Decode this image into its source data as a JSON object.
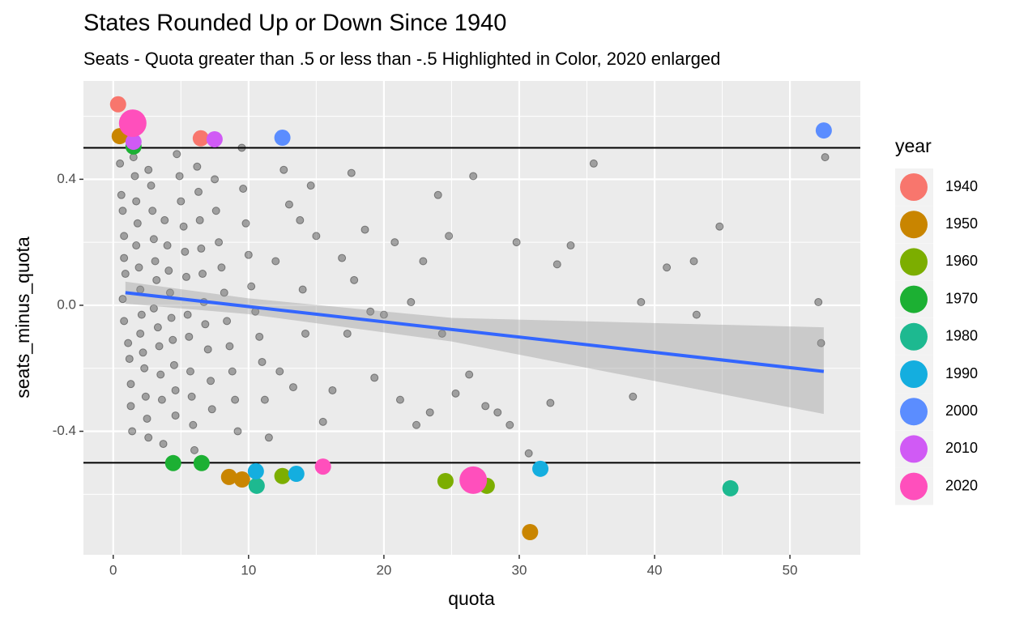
{
  "chart_data": {
    "type": "scatter",
    "title": "States Rounded Up or Down Since 1940",
    "subtitle": "Seats - Quota greater than .5 or less than -.5 Highlighted in Color, 2020 enlarged",
    "x_label": "quota",
    "y_label": "seats_minus_quota",
    "legend_title": "year",
    "legend_position": "right",
    "grid": true,
    "xlim": [
      -2.2,
      55.2
    ],
    "ylim": [
      -0.792,
      0.712
    ],
    "xticks": [
      0,
      10,
      20,
      30,
      40,
      50
    ],
    "yticks": [
      -0.4,
      {
        "value": 0,
        "label": "0.0"
      },
      0.4
    ],
    "hlines": [
      0.5,
      -0.5
    ],
    "points": {
      "color": "#000000",
      "x": [
        0.5,
        0.6,
        0.7,
        0.8,
        0.8,
        0.9,
        0.7,
        0.8,
        1.1,
        1.2,
        1.3,
        1.3,
        1.4,
        1.5,
        1.6,
        1.7,
        1.8,
        1.7,
        1.9,
        2.0,
        2.1,
        2.0,
        2.2,
        2.3,
        2.4,
        2.5,
        2.6,
        2.6,
        2.8,
        2.9,
        3.0,
        3.1,
        3.2,
        3.0,
        3.3,
        3.4,
        3.5,
        3.6,
        3.7,
        3.8,
        4.0,
        4.1,
        4.2,
        4.3,
        4.4,
        4.5,
        4.6,
        4.6,
        4.7,
        4.9,
        5.0,
        5.2,
        5.3,
        5.4,
        5.5,
        5.6,
        5.7,
        5.8,
        5.9,
        6.0,
        6.2,
        6.3,
        6.4,
        6.5,
        6.6,
        6.7,
        6.8,
        7.0,
        7.2,
        7.3,
        7.5,
        7.6,
        7.8,
        8.0,
        8.2,
        8.4,
        8.6,
        8.8,
        9.0,
        9.2,
        9.5,
        9.6,
        9.8,
        10.0,
        10.2,
        10.5,
        10.8,
        11.0,
        11.2,
        11.5,
        12.0,
        12.3,
        12.6,
        13.0,
        13.3,
        13.8,
        14.0,
        14.2,
        14.6,
        15.0,
        15.5,
        16.2,
        16.9,
        17.3,
        17.6,
        17.8,
        18.6,
        19.0,
        19.3,
        20.0,
        20.8,
        21.2,
        22.0,
        22.4,
        22.9,
        23.4,
        24.0,
        24.3,
        24.8,
        25.3,
        26.3,
        26.6,
        27.5,
        28.4,
        29.3,
        29.8,
        30.7,
        32.3,
        32.8,
        33.8,
        35.5,
        38.4,
        39.0,
        40.9,
        42.9,
        43.1,
        44.8,
        52.1,
        52.3,
        52.6
      ],
      "y": [
        0.45,
        0.35,
        0.3,
        0.22,
        0.15,
        0.1,
        0.02,
        -0.05,
        -0.12,
        -0.17,
        -0.25,
        -0.32,
        -0.4,
        0.47,
        0.41,
        0.33,
        0.26,
        0.19,
        0.12,
        0.05,
        -0.03,
        -0.09,
        -0.15,
        -0.2,
        -0.29,
        -0.36,
        -0.42,
        0.43,
        0.38,
        0.3,
        0.21,
        0.14,
        0.08,
        -0.01,
        -0.07,
        -0.13,
        -0.22,
        -0.3,
        -0.44,
        0.27,
        0.19,
        0.11,
        0.04,
        -0.04,
        -0.11,
        -0.19,
        -0.27,
        -0.35,
        0.48,
        0.41,
        0.33,
        0.25,
        0.17,
        0.09,
        -0.03,
        -0.1,
        -0.21,
        -0.29,
        -0.38,
        -0.46,
        0.44,
        0.36,
        0.27,
        0.18,
        0.1,
        0.01,
        -0.06,
        -0.14,
        -0.24,
        -0.33,
        0.4,
        0.3,
        0.2,
        0.12,
        0.04,
        -0.05,
        -0.13,
        -0.21,
        -0.3,
        -0.4,
        0.5,
        0.37,
        0.26,
        0.16,
        0.06,
        -0.02,
        -0.1,
        -0.18,
        -0.3,
        -0.42,
        0.14,
        -0.21,
        0.43,
        0.32,
        -0.26,
        0.27,
        0.05,
        -0.09,
        0.38,
        0.22,
        -0.37,
        -0.27,
        0.15,
        -0.09,
        0.42,
        0.08,
        0.24,
        -0.02,
        -0.23,
        -0.03,
        0.2,
        -0.3,
        0.01,
        -0.38,
        0.14,
        -0.34,
        0.35,
        -0.09,
        0.22,
        -0.28,
        -0.22,
        0.41,
        -0.32,
        -0.34,
        -0.38,
        0.2,
        -0.47,
        -0.31,
        0.13,
        0.19,
        0.45,
        -0.29,
        0.01,
        0.12,
        0.14,
        -0.03,
        0.25,
        0.01,
        -0.12,
        0.47
      ]
    },
    "trend": {
      "color": "#3366ff",
      "x": [
        0.9,
        52.5
      ],
      "y": [
        0.04,
        -0.21
      ]
    },
    "band": {
      "x": [
        0.9,
        10,
        25,
        52.5
      ],
      "upper": [
        0.075,
        0.022,
        -0.04,
        -0.07
      ],
      "lower": [
        0.005,
        -0.028,
        -0.115,
        -0.345
      ]
    },
    "series": [
      {
        "name": "1940",
        "color": "#F8766D",
        "x": [
          0.36,
          6.47
        ],
        "y": [
          0.638,
          0.53
        ]
      },
      {
        "name": "1950",
        "color": "#C98500",
        "x": [
          0.48,
          8.56,
          9.52,
          30.8
        ],
        "y": [
          0.537,
          -0.545,
          -0.553,
          -0.72
        ]
      },
      {
        "name": "1960",
        "color": "#7CAE00",
        "x": [
          12.5,
          24.55,
          27.6
        ],
        "y": [
          -0.542,
          -0.558,
          -0.573
        ]
      },
      {
        "name": "1970",
        "color": "#1CB033",
        "x": [
          1.5,
          4.43,
          6.53
        ],
        "y": [
          0.504,
          -0.501,
          -0.501
        ]
      },
      {
        "name": "1980",
        "color": "#1DB990",
        "x": [
          10.6,
          45.6
        ],
        "y": [
          -0.573,
          -0.581
        ]
      },
      {
        "name": "1990",
        "color": "#14AEDF",
        "x": [
          10.54,
          13.53,
          31.56
        ],
        "y": [
          -0.527,
          -0.535,
          -0.519
        ]
      },
      {
        "name": "2000",
        "color": "#5B8DFF",
        "x": [
          12.5,
          52.5
        ],
        "y": [
          0.532,
          0.555
        ]
      },
      {
        "name": "2010",
        "color": "#D05AF5",
        "x": [
          1.5,
          7.49
        ],
        "y": [
          0.519,
          0.527
        ]
      },
      {
        "name": "2020",
        "color": "#FF4FBC",
        "x": [
          1.44,
          15.5,
          26.6
        ],
        "y": [
          0.578,
          -0.512,
          -0.555
        ]
      }
    ]
  }
}
